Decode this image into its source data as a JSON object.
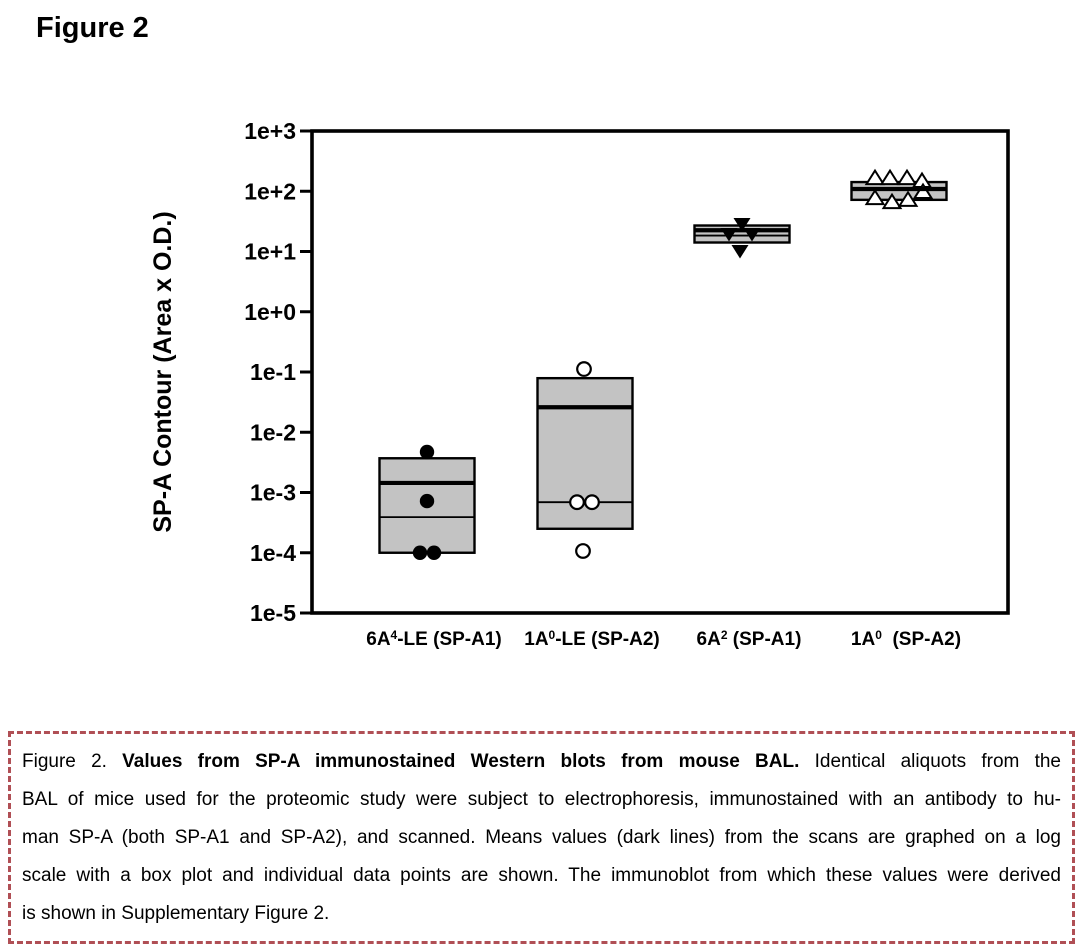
{
  "page": {
    "heading": "Figure 2"
  },
  "chart_data": {
    "type": "box",
    "title": "Figure 2",
    "ylabel": "SP-A Contour (Area x O.D.)",
    "xlabel": "",
    "yscale": "log",
    "ylim": [
      1e-05,
      1000
    ],
    "ytick_labels": [
      "1e+3",
      "1e+2",
      "1e+1",
      "1e+0",
      "1e-1",
      "1e-2",
      "1e-3",
      "1e-4",
      "1e-5"
    ],
    "grid": false,
    "legend": "none",
    "box_fill_color": "#c3c3c3",
    "box_edge_color": "#000000",
    "categories": [
      "6A4-LE (SP-A1)",
      "1A0-LE (SP-A2)",
      "6A2 (SP-A1)",
      "1A0 (SP-A2)"
    ],
    "groups": [
      {
        "label_segments": [
          {
            "t": "6A"
          },
          {
            "t": "4",
            "sup": true
          },
          {
            "t": "-LE (SP-A1)"
          }
        ],
        "marker": "filled-circle",
        "box": {
          "q3": 0.0037,
          "mean": 0.00144,
          "median": 0.00039,
          "q1": 0.0001
        },
        "points": [
          {
            "v": 0.0047,
            "dx": 0
          },
          {
            "v": 0.00072,
            "dx": 0
          },
          {
            "v": 0.0001,
            "dx": -7
          },
          {
            "v": 0.0001,
            "dx": 7
          }
        ]
      },
      {
        "label_segments": [
          {
            "t": "1A"
          },
          {
            "t": "0",
            "sup": true
          },
          {
            "t": "-LE (SP-A2)"
          }
        ],
        "marker": "open-circle",
        "box": {
          "q3": 0.079,
          "mean": 0.026,
          "median": 0.00069,
          "q1": 0.00025
        },
        "points": [
          {
            "v": 0.112,
            "dx": -1
          },
          {
            "v": 0.00069,
            "dx": -8
          },
          {
            "v": 0.00069,
            "dx": 7
          },
          {
            "v": 0.000107,
            "dx": -2
          }
        ]
      },
      {
        "label_segments": [
          {
            "t": "6A"
          },
          {
            "t": "2",
            "sup": true
          },
          {
            "t": " (SP-A1)"
          }
        ],
        "marker": "filled-triangle-down",
        "box": {
          "q3": 27,
          "mean": 22.5,
          "median": 18.4,
          "q1": 14.1
        },
        "points": [
          {
            "v": 28.6,
            "dx": 0
          },
          {
            "v": 19.5,
            "dx": -13
          },
          {
            "v": 19.5,
            "dx": 10
          },
          {
            "v": 10.2,
            "dx": -2
          }
        ]
      },
      {
        "label_segments": [
          {
            "t": "1A"
          },
          {
            "t": "0",
            "sup": true
          },
          {
            "t": "  (SP-A2)"
          }
        ],
        "marker": "open-triangle-up",
        "box": {
          "q3": 142,
          "mean": 109,
          "median": null,
          "q1": 72
        },
        "points": [
          {
            "v": 165,
            "dx": -24
          },
          {
            "v": 165,
            "dx": -9
          },
          {
            "v": 165,
            "dx": 8
          },
          {
            "v": 148,
            "dx": 23
          },
          {
            "v": 77,
            "dx": -24
          },
          {
            "v": 66,
            "dx": -7
          },
          {
            "v": 72,
            "dx": 9
          },
          {
            "v": 97,
            "dx": 24
          }
        ]
      }
    ]
  },
  "caption": {
    "border_color": "#b04f55",
    "lines": [
      {
        "segments": [
          {
            "t": "Figure 2.  "
          },
          {
            "t": "Values from SP-A immunostained Western blots from mouse BAL.",
            "b": true
          },
          {
            "t": "  Identical aliquots from the"
          }
        ]
      },
      {
        "segments": [
          {
            "t": "BAL of mice used for the proteomic study were subject to electrophoresis, immunostained with an antibody to hu-"
          }
        ]
      },
      {
        "segments": [
          {
            "t": "man SP-A (both SP-A1 and SP-A2), and scanned.  Means values (dark lines)  from the scans  are graphed on a log"
          }
        ]
      },
      {
        "segments": [
          {
            "t": "scale with a box plot and individual data points are shown.  The immunoblot from which these values were derived"
          }
        ]
      },
      {
        "segments": [
          {
            "t": "is shown in Supplementary Figure 2."
          }
        ],
        "last": true
      }
    ]
  }
}
